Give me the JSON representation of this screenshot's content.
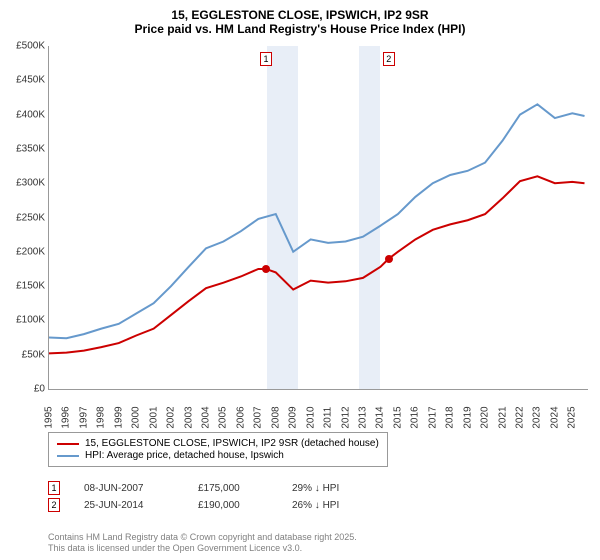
{
  "title": {
    "line1": "15, EGGLESTONE CLOSE, IPSWICH, IP2 9SR",
    "line2": "Price paid vs. HM Land Registry's House Price Index (HPI)"
  },
  "chart": {
    "type": "line",
    "background_color": "#ffffff",
    "shade_color": "#e8eef7",
    "axis_color": "#999999",
    "x": {
      "min": 1995,
      "max": 2025.9,
      "ticks": [
        1995,
        1996,
        1997,
        1998,
        1999,
        2000,
        2001,
        2002,
        2003,
        2004,
        2005,
        2006,
        2007,
        2008,
        2009,
        2010,
        2011,
        2012,
        2013,
        2014,
        2015,
        2016,
        2017,
        2018,
        2019,
        2020,
        2021,
        2022,
        2023,
        2024,
        2025
      ]
    },
    "y": {
      "min": 0,
      "max": 500000,
      "ticks": [
        0,
        50000,
        100000,
        150000,
        200000,
        250000,
        300000,
        350000,
        400000,
        450000,
        500000
      ],
      "tick_labels": [
        "£0",
        "£50K",
        "£100K",
        "£150K",
        "£200K",
        "£250K",
        "£300K",
        "£350K",
        "£400K",
        "£450K",
        "£500K"
      ]
    },
    "shaded_ranges": [
      {
        "from": 2007.5,
        "to": 2009.3
      },
      {
        "from": 2012.8,
        "to": 2014.0
      }
    ],
    "series": [
      {
        "name": "property",
        "label": "15, EGGLESTONE CLOSE, IPSWICH, IP2 9SR (detached house)",
        "color": "#cc0000",
        "line_width": 2,
        "points": [
          [
            1995,
            52000
          ],
          [
            1996,
            53000
          ],
          [
            1997,
            56000
          ],
          [
            1998,
            61000
          ],
          [
            1999,
            67000
          ],
          [
            2000,
            78000
          ],
          [
            2001,
            88000
          ],
          [
            2002,
            108000
          ],
          [
            2003,
            128000
          ],
          [
            2004,
            147000
          ],
          [
            2005,
            155000
          ],
          [
            2006,
            164000
          ],
          [
            2007,
            175000
          ],
          [
            2007.44,
            175000
          ],
          [
            2008,
            170000
          ],
          [
            2009,
            145000
          ],
          [
            2010,
            158000
          ],
          [
            2011,
            155000
          ],
          [
            2012,
            157000
          ],
          [
            2013,
            162000
          ],
          [
            2014,
            178000
          ],
          [
            2014.48,
            190000
          ],
          [
            2015,
            200000
          ],
          [
            2016,
            218000
          ],
          [
            2017,
            232000
          ],
          [
            2018,
            240000
          ],
          [
            2019,
            246000
          ],
          [
            2020,
            255000
          ],
          [
            2021,
            278000
          ],
          [
            2022,
            303000
          ],
          [
            2023,
            310000
          ],
          [
            2024,
            300000
          ],
          [
            2025,
            302000
          ],
          [
            2025.7,
            300000
          ]
        ]
      },
      {
        "name": "hpi",
        "label": "HPI: Average price, detached house, Ipswich",
        "color": "#6699cc",
        "line_width": 2,
        "points": [
          [
            1995,
            75000
          ],
          [
            1996,
            74000
          ],
          [
            1997,
            80000
          ],
          [
            1998,
            88000
          ],
          [
            1999,
            95000
          ],
          [
            2000,
            110000
          ],
          [
            2001,
            125000
          ],
          [
            2002,
            150000
          ],
          [
            2003,
            178000
          ],
          [
            2004,
            205000
          ],
          [
            2005,
            215000
          ],
          [
            2006,
            230000
          ],
          [
            2007,
            248000
          ],
          [
            2008,
            255000
          ],
          [
            2009,
            200000
          ],
          [
            2010,
            218000
          ],
          [
            2011,
            213000
          ],
          [
            2012,
            215000
          ],
          [
            2013,
            222000
          ],
          [
            2014,
            238000
          ],
          [
            2015,
            255000
          ],
          [
            2016,
            280000
          ],
          [
            2017,
            300000
          ],
          [
            2018,
            312000
          ],
          [
            2019,
            318000
          ],
          [
            2020,
            330000
          ],
          [
            2021,
            362000
          ],
          [
            2022,
            400000
          ],
          [
            2023,
            415000
          ],
          [
            2024,
            395000
          ],
          [
            2025,
            402000
          ],
          [
            2025.7,
            398000
          ]
        ]
      }
    ],
    "sale_markers": [
      {
        "n": "1",
        "year": 2007.44,
        "price": 175000
      },
      {
        "n": "2",
        "year": 2014.48,
        "price": 190000
      }
    ],
    "tick_fontsize": 10,
    "title_fontsize": 12
  },
  "legend": {
    "items": [
      {
        "color": "#cc0000",
        "label": "15, EGGLESTONE CLOSE, IPSWICH, IP2 9SR (detached house)"
      },
      {
        "color": "#6699cc",
        "label": "HPI: Average price, detached house, Ipswich"
      }
    ]
  },
  "sales": [
    {
      "n": "1",
      "date": "08-JUN-2007",
      "price": "£175,000",
      "delta": "29% ↓ HPI"
    },
    {
      "n": "2",
      "date": "25-JUN-2014",
      "price": "£190,000",
      "delta": "26% ↓ HPI"
    }
  ],
  "attribution": {
    "line1": "Contains HM Land Registry data © Crown copyright and database right 2025.",
    "line2": "This data is licensed under the Open Government Licence v3.0."
  }
}
